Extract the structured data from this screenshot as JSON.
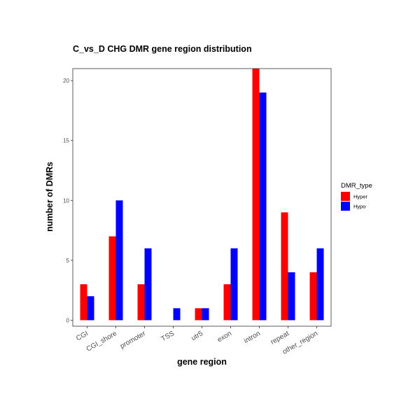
{
  "chart_data": {
    "type": "bar",
    "title": "C_vs_D  CHG  DMR  gene region  distribution",
    "xlabel": "gene    region",
    "ylabel": "number    of    DMRs",
    "categories": [
      "CGI",
      "CGI_shore",
      "promoter",
      "TSS",
      "utr5",
      "exon",
      "intron",
      "repeat",
      "other_region"
    ],
    "series": [
      {
        "name": "Hyper",
        "color": "#ff0000",
        "values": [
          3,
          7,
          3,
          0,
          1,
          3,
          21,
          9,
          4
        ]
      },
      {
        "name": "Hypo",
        "color": "#0000ff",
        "values": [
          2,
          10,
          6,
          1,
          1,
          6,
          19,
          4,
          6
        ]
      }
    ],
    "ylim": [
      -0.5,
      21
    ],
    "yticks": [
      0,
      5,
      10,
      15,
      20
    ],
    "legend": {
      "title": "DMR_type",
      "position": "right"
    },
    "grid": false
  }
}
